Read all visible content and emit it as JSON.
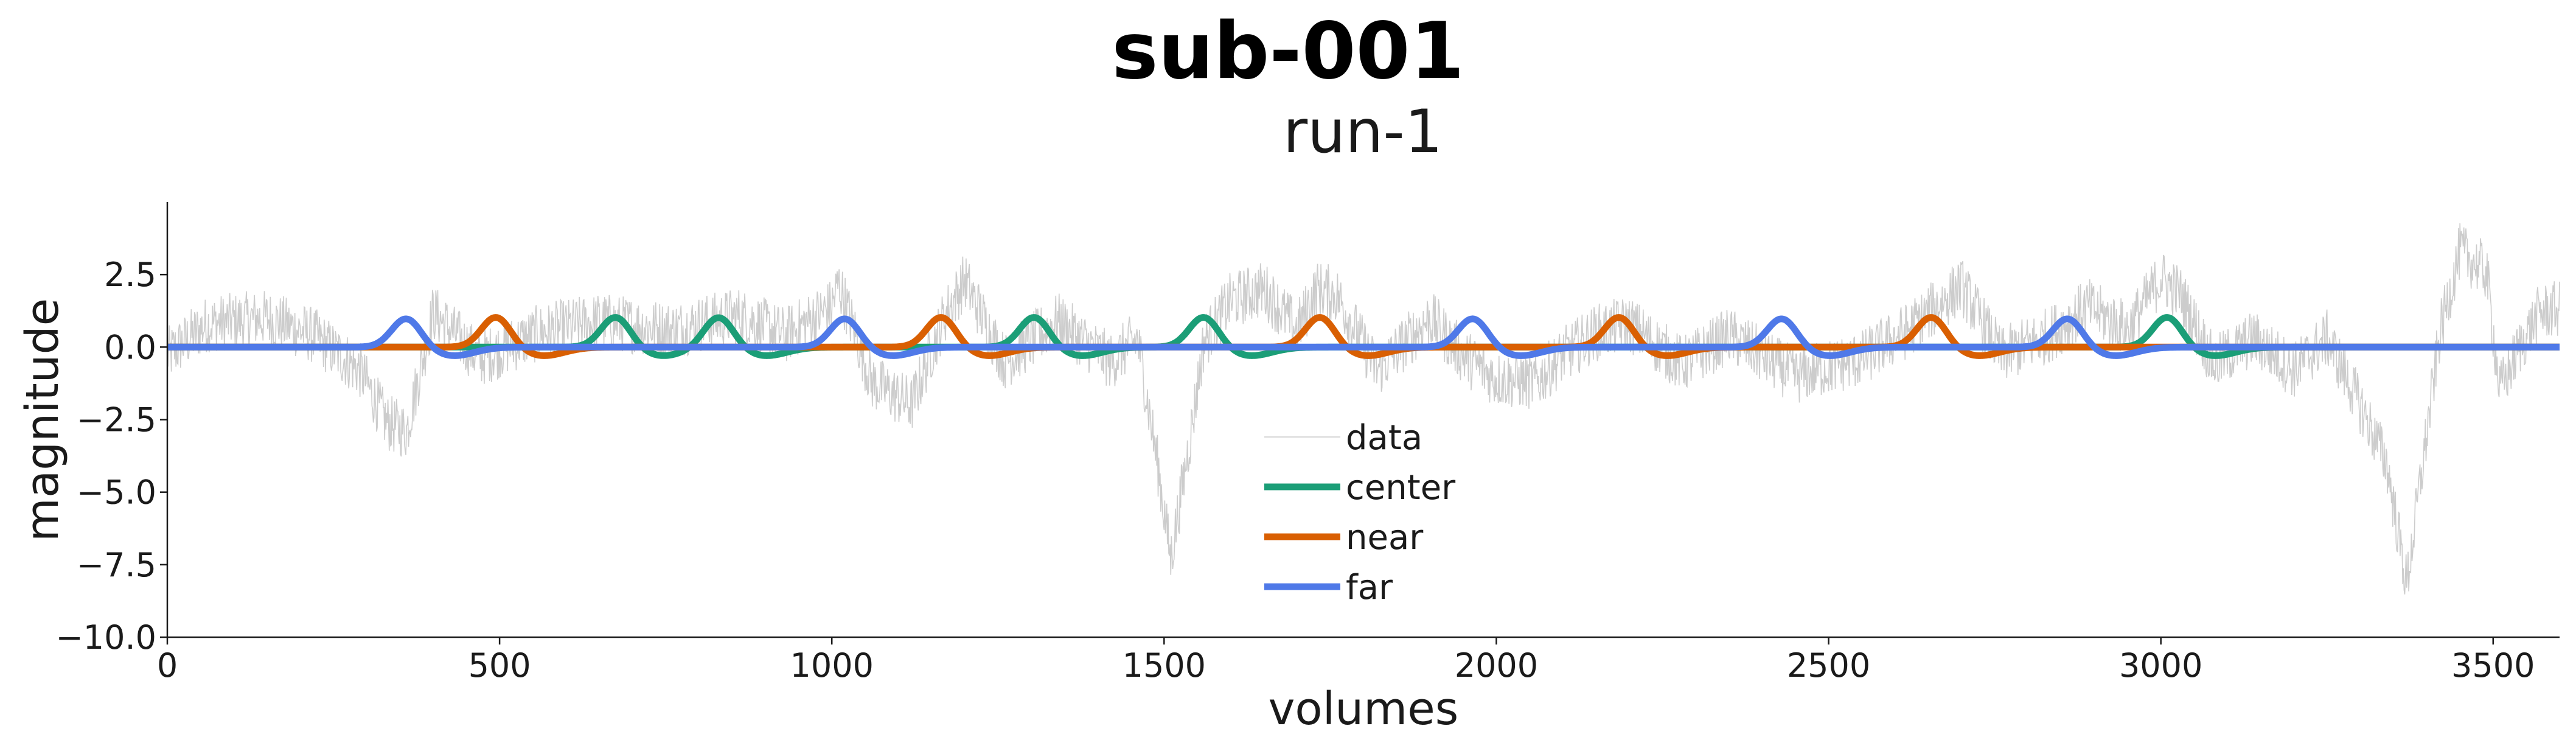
{
  "chart_data": {
    "type": "line",
    "title": "sub-001",
    "subtitle": "run-1",
    "xlabel": "volumes",
    "ylabel": "magnitude",
    "xlim": [
      0,
      3600
    ],
    "ylim": [
      -10.0,
      5.0
    ],
    "xticks": [
      0,
      500,
      1000,
      1500,
      2000,
      2500,
      3000,
      3500
    ],
    "xtick_labels": [
      "0",
      "500",
      "1000",
      "1500",
      "2000",
      "2500",
      "3000",
      "3500"
    ],
    "yticks": [
      2.5,
      0.0,
      -2.5,
      -5.0,
      -7.5,
      -10.0
    ],
    "ytick_labels": [
      "2.5",
      "0.0",
      "−2.5",
      "−5.0",
      "−7.5",
      "−10.0"
    ],
    "grid": false,
    "zero_line": true,
    "legend_position": "lower-center",
    "series": [
      {
        "name": "data",
        "color": "#cccccc",
        "noise_amplitude": 1.0,
        "anchors": [
          [
            0,
            -0.3
          ],
          [
            60,
            0.8
          ],
          [
            150,
            1.0
          ],
          [
            220,
            0.4
          ],
          [
            290,
            -0.8
          ],
          [
            330,
            -2.6
          ],
          [
            360,
            -2.9
          ],
          [
            400,
            1.2
          ],
          [
            470,
            -0.4
          ],
          [
            560,
            0.5
          ],
          [
            650,
            0.9
          ],
          [
            760,
            0.6
          ],
          [
            860,
            1.1
          ],
          [
            930,
            0.4
          ],
          [
            1000,
            1.4
          ],
          [
            1010,
            2.2
          ],
          [
            1060,
            -1.2
          ],
          [
            1120,
            -2.0
          ],
          [
            1170,
            1.1
          ],
          [
            1200,
            2.3
          ],
          [
            1260,
            -0.5
          ],
          [
            1340,
            0.9
          ],
          [
            1420,
            -0.5
          ],
          [
            1460,
            0.3
          ],
          [
            1490,
            -4.0
          ],
          [
            1510,
            -7.3
          ],
          [
            1540,
            -3.0
          ],
          [
            1560,
            0.2
          ],
          [
            1600,
            1.6
          ],
          [
            1650,
            2.0
          ],
          [
            1700,
            0.6
          ],
          [
            1730,
            2.0
          ],
          [
            1760,
            1.8
          ],
          [
            1820,
            -0.8
          ],
          [
            1900,
            1.0
          ],
          [
            1950,
            -0.3
          ],
          [
            2000,
            -1.1
          ],
          [
            2060,
            -1.2
          ],
          [
            2100,
            -0.3
          ],
          [
            2150,
            0.5
          ],
          [
            2200,
            0.8
          ],
          [
            2280,
            -0.6
          ],
          [
            2350,
            0.4
          ],
          [
            2450,
            -1.0
          ],
          [
            2550,
            -0.4
          ],
          [
            2620,
            0.6
          ],
          [
            2700,
            2.1
          ],
          [
            2760,
            -0.3
          ],
          [
            2830,
            0.4
          ],
          [
            2890,
            1.4
          ],
          [
            2950,
            0.6
          ],
          [
            3000,
            2.4
          ],
          [
            3030,
            1.8
          ],
          [
            3080,
            -0.6
          ],
          [
            3140,
            0.3
          ],
          [
            3200,
            -0.8
          ],
          [
            3250,
            0.3
          ],
          [
            3300,
            -2.0
          ],
          [
            3340,
            -4.0
          ],
          [
            3370,
            -8.2
          ],
          [
            3400,
            -3.0
          ],
          [
            3420,
            0.5
          ],
          [
            3450,
            3.3
          ],
          [
            3490,
            2.6
          ],
          [
            3510,
            -1.5
          ],
          [
            3540,
            0.0
          ],
          [
            3570,
            1.2
          ],
          [
            3600,
            1.3
          ]
        ]
      },
      {
        "name": "center",
        "color": "#1b9e77",
        "onsets": [
          675,
          830,
          1305,
          1560,
          3010
        ],
        "peak": 1.05,
        "undershoot": -0.3
      },
      {
        "name": "near",
        "color": "#d95f02",
        "onsets": [
          495,
          1165,
          1735,
          2185,
          2655
        ],
        "peak": 1.05,
        "undershoot": -0.3
      },
      {
        "name": "far",
        "color": "#4f79e8",
        "onsets": [
          360,
          1020,
          1965,
          2430,
          2860
        ],
        "peak": 1.0,
        "undershoot": -0.3
      }
    ]
  }
}
